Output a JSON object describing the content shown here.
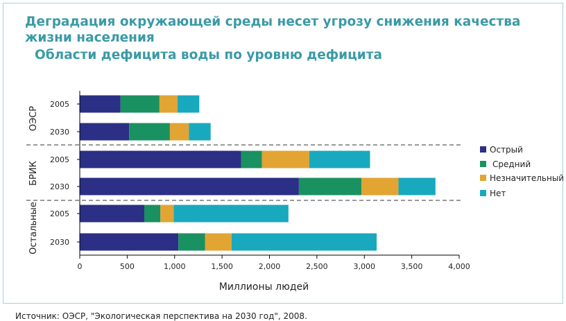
{
  "page": {
    "title": "Деградация окружающей среды несет угрозу снижения качества жизни населения",
    "subtitle": "Области дефицита воды по уровню дефицита",
    "source": "Источник: ОЭСР, \"Экологическая перспектива на 2030 год\", 2008."
  },
  "chart_data": {
    "type": "bar",
    "orientation": "horizontal",
    "stacked": true,
    "groups": [
      {
        "label": "ОЭСР",
        "rows": [
          "2005",
          "2030"
        ]
      },
      {
        "label": "БРИК",
        "rows": [
          "2005",
          "2030"
        ]
      },
      {
        "label": "Остальные",
        "rows": [
          "2005",
          "2030"
        ]
      }
    ],
    "categories": [
      "ОЭСР 2005",
      "ОЭСР 2030",
      "БРИК 2005",
      "БРИК 2030",
      "Остальные 2005",
      "Остальные 2030"
    ],
    "series": [
      {
        "name": "Острый",
        "color": "#2b2f85",
        "values": [
          430,
          520,
          1700,
          2310,
          680,
          1040
        ]
      },
      {
        "name": "Средний",
        "color": "#1a9160",
        "values": [
          410,
          430,
          220,
          660,
          170,
          280
        ]
      },
      {
        "name": "Незначительный",
        "color": "#e2a433",
        "values": [
          190,
          200,
          500,
          390,
          140,
          280
        ]
      },
      {
        "name": "Нет",
        "color": "#19a9be",
        "values": [
          230,
          230,
          640,
          390,
          1210,
          1530
        ]
      }
    ],
    "xlabel": "Миллионы людей",
    "xlim": [
      0,
      4000
    ],
    "xticks": [
      0,
      500,
      1000,
      1500,
      2000,
      2500,
      3000,
      3500,
      4000
    ],
    "xtick_labels": [
      "0",
      "500",
      "1,000",
      "1,500",
      "2,000",
      "2,500",
      "3,000",
      "3,500",
      "4,000"
    ],
    "legend_position": "right",
    "grid": false
  }
}
